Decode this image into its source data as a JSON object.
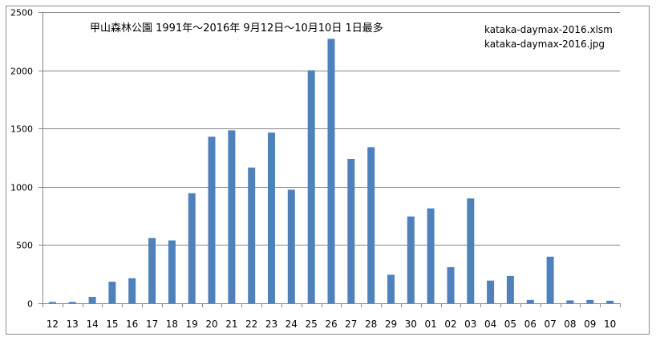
{
  "chart_data": {
    "type": "bar",
    "title": "甲山森林公園 1991年～2016年  9月12日～10月10日  1日最多",
    "annotations": [
      "kataka-daymax-2016.xlsm",
      "kataka-daymax-2016.jpg"
    ],
    "categories": [
      "12",
      "13",
      "14",
      "15",
      "16",
      "17",
      "18",
      "19",
      "20",
      "21",
      "22",
      "23",
      "24",
      "25",
      "26",
      "27",
      "28",
      "29",
      "30",
      "01",
      "02",
      "03",
      "04",
      "05",
      "06",
      "07",
      "08",
      "09",
      "10"
    ],
    "values": [
      12,
      12,
      55,
      185,
      215,
      560,
      540,
      945,
      1430,
      1485,
      1165,
      1465,
      975,
      2000,
      2270,
      1240,
      1340,
      245,
      745,
      815,
      310,
      900,
      195,
      235,
      28,
      400,
      25,
      28,
      22
    ],
    "yticks": [
      0,
      500,
      1000,
      1500,
      2000,
      2500
    ],
    "ylim": [
      0,
      2500
    ],
    "grid": true,
    "legend": "none",
    "colors": {
      "bar": "#4f81bd",
      "grid": "#868686",
      "axis": "#868686"
    }
  }
}
